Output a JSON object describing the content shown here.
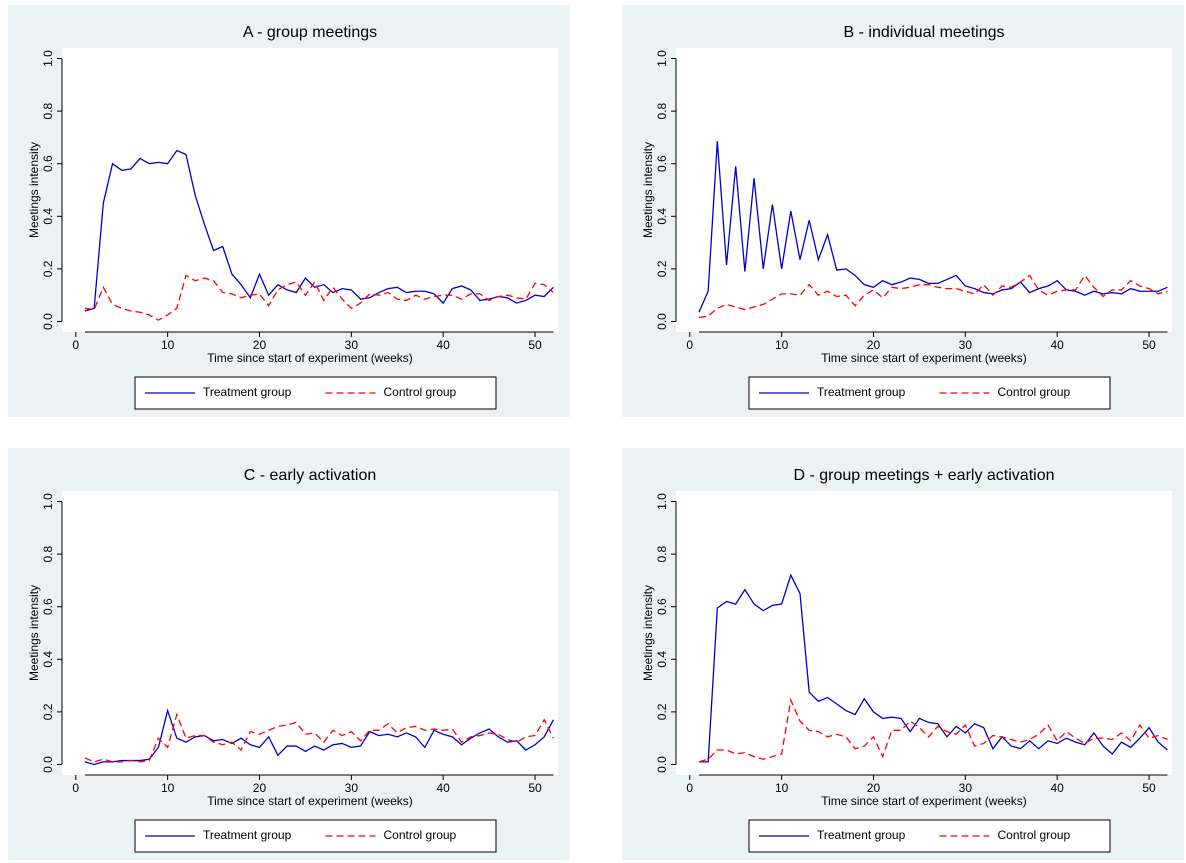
{
  "chart_data": [
    {
      "type": "line",
      "title": "A - group meetings",
      "xlabel": "Time since start of experiment (weeks)",
      "ylabel": "Meetings intensity",
      "x": [
        1,
        2,
        3,
        4,
        5,
        6,
        7,
        8,
        9,
        10,
        11,
        12,
        13,
        14,
        15,
        16,
        17,
        18,
        19,
        20,
        21,
        22,
        23,
        24,
        25,
        26,
        27,
        28,
        29,
        30,
        31,
        32,
        33,
        34,
        35,
        36,
        37,
        38,
        39,
        40,
        41,
        42,
        43,
        44,
        45,
        46,
        47,
        48,
        49,
        50,
        51,
        52
      ],
      "xlim": [
        -1.5,
        52.5
      ],
      "xticks": [
        0,
        10,
        20,
        30,
        40,
        50
      ],
      "ylim": [
        -0.04,
        1.04
      ],
      "yticks": [
        {
          "value": 0,
          "label": "0.0"
        },
        0.2,
        0.4,
        0.6,
        0.8,
        {
          "value": 1,
          "label": "1.0"
        }
      ],
      "grid": false,
      "legend": "bottom",
      "series": [
        {
          "name": "Treatment group",
          "color": "#0000cc",
          "linestyle": "solid",
          "values": [
            0.04,
            0.05,
            0.45,
            0.6,
            0.575,
            0.58,
            0.62,
            0.6,
            0.605,
            0.6,
            0.65,
            0.635,
            0.48,
            0.37,
            0.27,
            0.285,
            0.18,
            0.14,
            0.09,
            0.18,
            0.1,
            0.14,
            0.12,
            0.11,
            0.165,
            0.13,
            0.14,
            0.11,
            0.125,
            0.12,
            0.085,
            0.09,
            0.11,
            0.125,
            0.13,
            0.11,
            0.115,
            0.115,
            0.105,
            0.07,
            0.125,
            0.135,
            0.12,
            0.08,
            0.085,
            0.095,
            0.09,
            0.07,
            0.08,
            0.1,
            0.095,
            0.13
          ]
        },
        {
          "name": "Control group",
          "color": "#ff0000",
          "linestyle": "dashed",
          "values": [
            0.05,
            0.045,
            0.13,
            0.065,
            0.05,
            0.04,
            0.035,
            0.025,
            0.005,
            0.025,
            0.05,
            0.175,
            0.155,
            0.165,
            0.155,
            0.11,
            0.105,
            0.09,
            0.1,
            0.105,
            0.06,
            0.12,
            0.14,
            0.15,
            0.1,
            0.15,
            0.08,
            0.13,
            0.085,
            0.05,
            0.07,
            0.105,
            0.1,
            0.11,
            0.085,
            0.08,
            0.1,
            0.085,
            0.095,
            0.1,
            0.1,
            0.085,
            0.105,
            0.105,
            0.08,
            0.095,
            0.1,
            0.09,
            0.085,
            0.145,
            0.14,
            0.11
          ]
        }
      ]
    },
    {
      "type": "line",
      "title": "B - individual meetings",
      "xlabel": "Time since start of experiment (weeks)",
      "ylabel": "Meetings intensity",
      "x": [
        1,
        2,
        3,
        4,
        5,
        6,
        7,
        8,
        9,
        10,
        11,
        12,
        13,
        14,
        15,
        16,
        17,
        18,
        19,
        20,
        21,
        22,
        23,
        24,
        25,
        26,
        27,
        28,
        29,
        30,
        31,
        32,
        33,
        34,
        35,
        36,
        37,
        38,
        39,
        40,
        41,
        42,
        43,
        44,
        45,
        46,
        47,
        48,
        49,
        50,
        51,
        52
      ],
      "xlim": [
        -1.5,
        52.5
      ],
      "xticks": [
        0,
        10,
        20,
        30,
        40,
        50
      ],
      "ylim": [
        -0.04,
        1.04
      ],
      "yticks": [
        {
          "value": 0,
          "label": "0.0"
        },
        0.2,
        0.4,
        0.6,
        0.8,
        {
          "value": 1,
          "label": "1.0"
        }
      ],
      "grid": false,
      "legend": "bottom",
      "series": [
        {
          "name": "Treatment group",
          "color": "#0000cc",
          "linestyle": "solid",
          "values": [
            0.035,
            0.115,
            0.685,
            0.215,
            0.59,
            0.19,
            0.545,
            0.2,
            0.445,
            0.2,
            0.42,
            0.235,
            0.385,
            0.235,
            0.33,
            0.195,
            0.2,
            0.175,
            0.14,
            0.13,
            0.155,
            0.14,
            0.15,
            0.165,
            0.16,
            0.145,
            0.145,
            0.16,
            0.175,
            0.135,
            0.125,
            0.11,
            0.105,
            0.12,
            0.125,
            0.15,
            0.11,
            0.125,
            0.135,
            0.155,
            0.12,
            0.115,
            0.1,
            0.115,
            0.105,
            0.11,
            0.105,
            0.125,
            0.115,
            0.115,
            0.115,
            0.13
          ]
        },
        {
          "name": "Control group",
          "color": "#ff0000",
          "linestyle": "dashed",
          "values": [
            0.015,
            0.02,
            0.05,
            0.065,
            0.055,
            0.045,
            0.055,
            0.065,
            0.085,
            0.105,
            0.105,
            0.1,
            0.14,
            0.1,
            0.115,
            0.095,
            0.1,
            0.06,
            0.1,
            0.12,
            0.09,
            0.13,
            0.125,
            0.13,
            0.14,
            0.14,
            0.13,
            0.125,
            0.125,
            0.115,
            0.105,
            0.14,
            0.1,
            0.135,
            0.13,
            0.15,
            0.175,
            0.12,
            0.1,
            0.115,
            0.12,
            0.12,
            0.175,
            0.13,
            0.095,
            0.12,
            0.12,
            0.155,
            0.135,
            0.125,
            0.105,
            0.115
          ]
        }
      ]
    },
    {
      "type": "line",
      "title": "C - early activation",
      "xlabel": "Time since start of experiment (weeks)",
      "ylabel": "Meetings intensity",
      "x": [
        1,
        2,
        3,
        4,
        5,
        6,
        7,
        8,
        9,
        10,
        11,
        12,
        13,
        14,
        15,
        16,
        17,
        18,
        19,
        20,
        21,
        22,
        23,
        24,
        25,
        26,
        27,
        28,
        29,
        30,
        31,
        32,
        33,
        34,
        35,
        36,
        37,
        38,
        39,
        40,
        41,
        42,
        43,
        44,
        45,
        46,
        47,
        48,
        49,
        50,
        51,
        52
      ],
      "xlim": [
        -1.5,
        52.5
      ],
      "xticks": [
        0,
        10,
        20,
        30,
        40,
        50
      ],
      "ylim": [
        -0.04,
        1.04
      ],
      "yticks": [
        {
          "value": 0,
          "label": "0.0"
        },
        0.2,
        0.4,
        0.6,
        0.8,
        {
          "value": 1,
          "label": "1.0"
        }
      ],
      "grid": false,
      "legend": "bottom",
      "series": [
        {
          "name": "Treatment group",
          "color": "#0000cc",
          "linestyle": "solid",
          "values": [
            0.01,
            0.0,
            0.01,
            0.01,
            0.015,
            0.015,
            0.015,
            0.02,
            0.065,
            0.205,
            0.1,
            0.085,
            0.105,
            0.11,
            0.09,
            0.095,
            0.08,
            0.1,
            0.075,
            0.065,
            0.105,
            0.035,
            0.07,
            0.07,
            0.05,
            0.07,
            0.055,
            0.075,
            0.08,
            0.065,
            0.07,
            0.125,
            0.11,
            0.115,
            0.105,
            0.12,
            0.105,
            0.065,
            0.13,
            0.115,
            0.105,
            0.075,
            0.1,
            0.12,
            0.135,
            0.105,
            0.085,
            0.09,
            0.055,
            0.075,
            0.105,
            0.17
          ]
        },
        {
          "name": "Control group",
          "color": "#ff0000",
          "linestyle": "dashed",
          "values": [
            0.025,
            0.01,
            0.02,
            0.01,
            0.01,
            0.015,
            0.01,
            0.015,
            0.1,
            0.065,
            0.19,
            0.1,
            0.11,
            0.11,
            0.085,
            0.075,
            0.085,
            0.055,
            0.125,
            0.115,
            0.13,
            0.145,
            0.15,
            0.16,
            0.115,
            0.12,
            0.085,
            0.13,
            0.11,
            0.125,
            0.09,
            0.13,
            0.13,
            0.155,
            0.12,
            0.14,
            0.145,
            0.13,
            0.135,
            0.13,
            0.135,
            0.085,
            0.105,
            0.11,
            0.12,
            0.115,
            0.095,
            0.085,
            0.105,
            0.11,
            0.17,
            0.1
          ]
        }
      ]
    },
    {
      "type": "line",
      "title": "D - group meetings + early activation",
      "xlabel": "Time since start of experiment (weeks)",
      "ylabel": "Meetings intensity",
      "x": [
        1,
        2,
        3,
        4,
        5,
        6,
        7,
        8,
        9,
        10,
        11,
        12,
        13,
        14,
        15,
        16,
        17,
        18,
        19,
        20,
        21,
        22,
        23,
        24,
        25,
        26,
        27,
        28,
        29,
        30,
        31,
        32,
        33,
        34,
        35,
        36,
        37,
        38,
        39,
        40,
        41,
        42,
        43,
        44,
        45,
        46,
        47,
        48,
        49,
        50,
        51,
        52
      ],
      "xlim": [
        -1.5,
        52.5
      ],
      "xticks": [
        0,
        10,
        20,
        30,
        40,
        50
      ],
      "ylim": [
        -0.04,
        1.04
      ],
      "yticks": [
        {
          "value": 0,
          "label": "0.0"
        },
        0.2,
        0.4,
        0.6,
        0.8,
        {
          "value": 1,
          "label": "1.0"
        }
      ],
      "grid": false,
      "legend": "bottom",
      "series": [
        {
          "name": "Treatment group",
          "color": "#0000cc",
          "linestyle": "solid",
          "values": [
            0.01,
            0.01,
            0.595,
            0.62,
            0.61,
            0.665,
            0.61,
            0.585,
            0.605,
            0.61,
            0.72,
            0.65,
            0.275,
            0.24,
            0.255,
            0.23,
            0.205,
            0.19,
            0.25,
            0.2,
            0.175,
            0.18,
            0.175,
            0.125,
            0.175,
            0.16,
            0.155,
            0.105,
            0.145,
            0.12,
            0.155,
            0.14,
            0.06,
            0.105,
            0.07,
            0.06,
            0.09,
            0.06,
            0.09,
            0.08,
            0.1,
            0.085,
            0.075,
            0.12,
            0.07,
            0.04,
            0.085,
            0.065,
            0.1,
            0.14,
            0.085,
            0.055
          ]
        },
        {
          "name": "Control group",
          "color": "#ff0000",
          "linestyle": "dashed",
          "values": [
            0.01,
            0.02,
            0.055,
            0.055,
            0.04,
            0.045,
            0.03,
            0.02,
            0.03,
            0.04,
            0.245,
            0.165,
            0.13,
            0.125,
            0.105,
            0.115,
            0.105,
            0.06,
            0.07,
            0.105,
            0.03,
            0.13,
            0.13,
            0.165,
            0.14,
            0.105,
            0.145,
            0.125,
            0.115,
            0.15,
            0.07,
            0.08,
            0.11,
            0.105,
            0.095,
            0.085,
            0.095,
            0.115,
            0.15,
            0.09,
            0.125,
            0.1,
            0.08,
            0.1,
            0.1,
            0.095,
            0.12,
            0.09,
            0.15,
            0.1,
            0.11,
            0.095
          ]
        }
      ]
    }
  ]
}
